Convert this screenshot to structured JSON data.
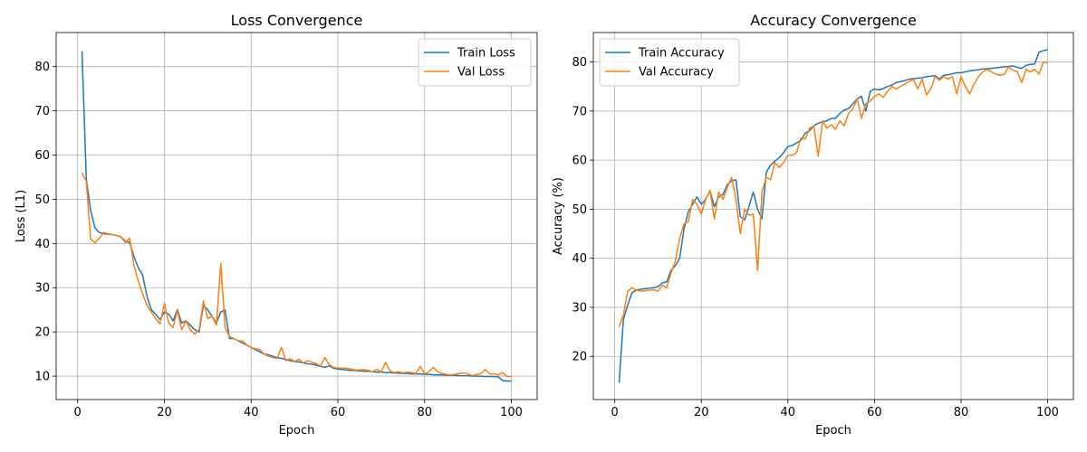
{
  "chart_data": [
    {
      "type": "line",
      "title": "Loss Convergence",
      "xlabel": "Epoch",
      "ylabel": "Loss (L1)",
      "xlim": [
        -4.95,
        105.95
      ],
      "ylim": [
        4.7,
        87.7
      ],
      "xticks": [
        0,
        20,
        40,
        60,
        80,
        100
      ],
      "yticks": [
        10,
        20,
        30,
        40,
        50,
        60,
        70,
        80
      ],
      "grid": true,
      "legend_position": "top-right",
      "series": [
        {
          "name": "Train Loss",
          "color": "#1f77b4",
          "x": [
            1,
            2,
            3,
            4,
            5,
            6,
            7,
            8,
            9,
            10,
            11,
            12,
            13,
            14,
            15,
            16,
            17,
            18,
            19,
            20,
            21,
            22,
            23,
            24,
            25,
            26,
            27,
            28,
            29,
            30,
            31,
            32,
            33,
            34,
            35,
            36,
            37,
            38,
            39,
            40,
            41,
            42,
            43,
            44,
            45,
            46,
            47,
            48,
            49,
            50,
            51,
            52,
            53,
            54,
            55,
            56,
            57,
            58,
            59,
            60,
            61,
            62,
            63,
            64,
            65,
            66,
            67,
            68,
            69,
            70,
            71,
            72,
            73,
            74,
            75,
            76,
            77,
            78,
            79,
            80,
            81,
            82,
            83,
            84,
            85,
            86,
            87,
            88,
            89,
            90,
            91,
            92,
            93,
            94,
            95,
            96,
            97,
            98,
            99,
            100
          ],
          "y": [
            83.5,
            54.5,
            47.5,
            43.5,
            42.5,
            42.2,
            42.1,
            42.0,
            41.8,
            41.5,
            40.5,
            40.2,
            37.0,
            34.5,
            32.8,
            28.0,
            25.0,
            24.0,
            22.8,
            24.5,
            24.0,
            22.5,
            25.0,
            22.0,
            22.5,
            21.5,
            20.5,
            20.0,
            26.0,
            25.0,
            23.5,
            22.0,
            24.5,
            25.0,
            18.5,
            18.5,
            18.0,
            17.5,
            17.0,
            16.5,
            16.0,
            15.5,
            15.0,
            14.8,
            14.5,
            14.2,
            14.0,
            13.8,
            13.5,
            13.3,
            13.2,
            13.0,
            12.8,
            12.7,
            12.5,
            12.2,
            12.0,
            12.3,
            11.8,
            11.6,
            11.5,
            11.4,
            11.3,
            11.3,
            11.2,
            11.1,
            11.1,
            11.0,
            10.9,
            10.9,
            10.8,
            10.8,
            10.7,
            10.7,
            10.6,
            10.6,
            10.5,
            10.5,
            10.5,
            10.4,
            10.4,
            10.3,
            10.3,
            10.3,
            10.2,
            10.2,
            10.2,
            10.1,
            10.1,
            10.1,
            10.0,
            10.0,
            10.0,
            9.9,
            9.9,
            9.9,
            9.8,
            9.0,
            8.9,
            8.9
          ]
        },
        {
          "name": "Val Loss",
          "color": "#ff7f0e",
          "x": [
            1,
            2,
            3,
            4,
            5,
            6,
            7,
            8,
            9,
            10,
            11,
            12,
            13,
            14,
            15,
            16,
            17,
            18,
            19,
            20,
            21,
            22,
            23,
            24,
            25,
            26,
            27,
            28,
            29,
            30,
            31,
            32,
            33,
            34,
            35,
            36,
            37,
            38,
            39,
            40,
            41,
            42,
            43,
            44,
            45,
            46,
            47,
            48,
            49,
            50,
            51,
            52,
            53,
            54,
            55,
            56,
            57,
            58,
            59,
            60,
            61,
            62,
            63,
            64,
            65,
            66,
            67,
            68,
            69,
            70,
            71,
            72,
            73,
            74,
            75,
            76,
            77,
            78,
            79,
            80,
            81,
            82,
            83,
            84,
            85,
            86,
            87,
            88,
            89,
            90,
            91,
            92,
            93,
            94,
            95,
            96,
            97,
            98,
            99,
            100
          ],
          "y": [
            56.0,
            54.0,
            41.0,
            40.2,
            41.2,
            42.5,
            42.2,
            42.0,
            41.8,
            41.5,
            40.2,
            41.2,
            35.0,
            31.5,
            28.5,
            26.0,
            24.5,
            23.0,
            21.8,
            26.5,
            22.0,
            21.0,
            24.8,
            20.5,
            22.5,
            20.5,
            19.5,
            20.5,
            27.0,
            23.0,
            23.5,
            21.5,
            35.5,
            21.0,
            19.0,
            18.5,
            18.0,
            18.0,
            17.0,
            16.5,
            16.2,
            16.0,
            15.0,
            14.5,
            14.2,
            14.0,
            16.5,
            13.5,
            14.0,
            13.3,
            13.8,
            13.0,
            13.5,
            13.2,
            12.8,
            12.3,
            14.2,
            12.6,
            12.0,
            11.8,
            11.8,
            11.8,
            11.6,
            11.4,
            11.4,
            11.5,
            11.3,
            11.0,
            11.5,
            11.0,
            13.1,
            11.2,
            10.8,
            11.0,
            10.7,
            10.9,
            10.8,
            10.6,
            12.2,
            10.5,
            11.0,
            12.0,
            11.0,
            10.6,
            10.4,
            10.3,
            10.4,
            10.6,
            10.7,
            10.5,
            10.1,
            10.4,
            10.6,
            11.5,
            10.5,
            10.5,
            10.3,
            10.8,
            9.9,
            9.9
          ]
        }
      ]
    },
    {
      "type": "line",
      "title": "Accuracy Convergence",
      "xlabel": "Epoch",
      "ylabel": "Accuracy (%)",
      "xlim": [
        -4.95,
        105.95
      ],
      "ylim": [
        11.2,
        86.0
      ],
      "xticks": [
        0,
        20,
        40,
        60,
        80,
        100
      ],
      "yticks": [
        20,
        30,
        40,
        50,
        60,
        70,
        80
      ],
      "grid": true,
      "legend_position": "top-left",
      "series": [
        {
          "name": "Train Accuracy",
          "color": "#1f77b4",
          "x": [
            1,
            2,
            3,
            4,
            5,
            6,
            7,
            8,
            9,
            10,
            11,
            12,
            13,
            14,
            15,
            16,
            17,
            18,
            19,
            20,
            21,
            22,
            23,
            24,
            25,
            26,
            27,
            28,
            29,
            30,
            31,
            32,
            33,
            34,
            35,
            36,
            37,
            38,
            39,
            40,
            41,
            42,
            43,
            44,
            45,
            46,
            47,
            48,
            49,
            50,
            51,
            52,
            53,
            54,
            55,
            56,
            57,
            58,
            59,
            60,
            61,
            62,
            63,
            64,
            65,
            66,
            67,
            68,
            69,
            70,
            71,
            72,
            73,
            74,
            75,
            76,
            77,
            78,
            79,
            80,
            81,
            82,
            83,
            84,
            85,
            86,
            87,
            88,
            89,
            90,
            91,
            92,
            93,
            94,
            95,
            96,
            97,
            98,
            99,
            100
          ],
          "y": [
            14.6,
            27.5,
            30.5,
            33.0,
            33.5,
            33.7,
            33.8,
            33.9,
            34.0,
            34.2,
            35.0,
            35.2,
            37.5,
            38.5,
            40.0,
            46.0,
            49.5,
            51.0,
            52.5,
            51.0,
            52.0,
            53.8,
            50.5,
            52.5,
            53.0,
            55.0,
            55.8,
            56.0,
            48.5,
            47.8,
            50.5,
            53.5,
            50.0,
            48.0,
            57.5,
            59.0,
            59.8,
            60.5,
            61.5,
            62.8,
            63.0,
            63.5,
            64.0,
            65.5,
            66.0,
            67.0,
            67.5,
            67.8,
            68.0,
            68.5,
            68.5,
            69.5,
            70.2,
            70.5,
            71.5,
            72.5,
            73.0,
            70.0,
            74.0,
            74.5,
            74.3,
            74.6,
            75.0,
            75.3,
            75.8,
            76.0,
            76.2,
            76.5,
            76.6,
            76.7,
            76.8,
            77.0,
            77.1,
            77.2,
            76.5,
            77.3,
            77.4,
            77.6,
            77.8,
            77.8,
            78.0,
            78.2,
            78.3,
            78.4,
            78.6,
            78.6,
            78.7,
            78.8,
            78.9,
            79.0,
            79.1,
            79.2,
            78.9,
            78.7,
            79.3,
            79.5,
            79.6,
            82.0,
            82.3,
            82.5
          ]
        },
        {
          "name": "Val Accuracy",
          "color": "#ff7f0e",
          "x": [
            1,
            2,
            3,
            4,
            5,
            6,
            7,
            8,
            9,
            10,
            11,
            12,
            13,
            14,
            15,
            16,
            17,
            18,
            19,
            20,
            21,
            22,
            23,
            24,
            25,
            26,
            27,
            28,
            29,
            30,
            31,
            32,
            33,
            34,
            35,
            36,
            37,
            38,
            39,
            40,
            41,
            42,
            43,
            44,
            45,
            46,
            47,
            48,
            49,
            50,
            51,
            52,
            53,
            54,
            55,
            56,
            57,
            58,
            59,
            60,
            61,
            62,
            63,
            64,
            65,
            66,
            67,
            68,
            69,
            70,
            71,
            72,
            73,
            74,
            75,
            76,
            77,
            78,
            79,
            80,
            81,
            82,
            83,
            84,
            85,
            86,
            87,
            88,
            89,
            90,
            91,
            92,
            93,
            94,
            95,
            96,
            97,
            98,
            99,
            100
          ],
          "y": [
            26.0,
            28.5,
            33.3,
            34.0,
            33.5,
            33.3,
            33.4,
            33.5,
            33.6,
            33.3,
            34.5,
            34.0,
            37.0,
            39.5,
            44.0,
            47.0,
            47.5,
            52.0,
            51.0,
            49.0,
            52.0,
            53.8,
            48.0,
            53.5,
            52.0,
            54.5,
            56.5,
            52.0,
            45.0,
            50.0,
            48.8,
            49.0,
            37.5,
            53.5,
            56.5,
            56.0,
            59.5,
            58.5,
            59.5,
            61.0,
            61.0,
            61.5,
            64.5,
            64.3,
            66.5,
            67.0,
            60.8,
            68.0,
            66.5,
            67.2,
            66.3,
            68.0,
            67.0,
            69.5,
            70.5,
            72.5,
            68.5,
            71.5,
            72.0,
            73.0,
            73.5,
            72.8,
            74.0,
            75.0,
            74.5,
            75.0,
            75.5,
            76.0,
            76.5,
            74.5,
            76.5,
            73.3,
            74.5,
            77.0,
            76.3,
            77.0,
            76.5,
            77.0,
            73.5,
            77.0,
            75.0,
            73.5,
            75.5,
            77.0,
            78.0,
            78.5,
            78.0,
            77.5,
            77.3,
            77.5,
            79.0,
            78.3,
            78.0,
            75.8,
            78.5,
            78.0,
            78.5,
            77.5,
            80.0,
            79.8
          ]
        }
      ]
    }
  ]
}
